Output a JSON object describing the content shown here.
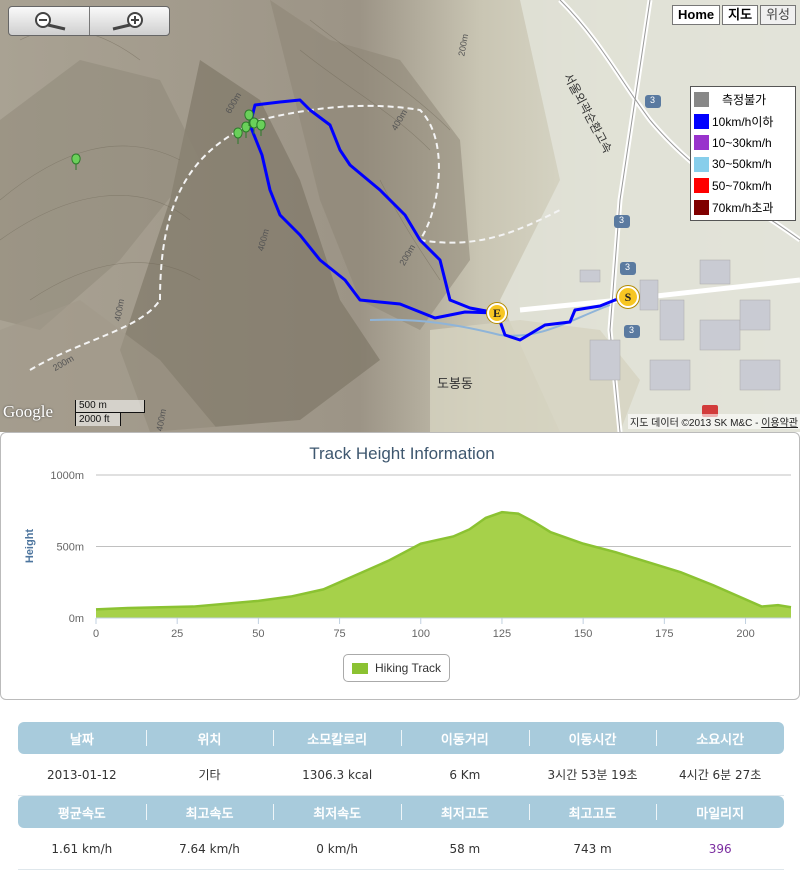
{
  "map": {
    "maptype_buttons": [
      "Home",
      "지도",
      "위성"
    ],
    "legend": [
      {
        "label": "측정불가",
        "color": "#888888"
      },
      {
        "label": "10km/h이하",
        "color": "#0000ff"
      },
      {
        "label": "10~30km/h",
        "color": "#9933cc"
      },
      {
        "label": "30~50km/h",
        "color": "#87ceeb"
      },
      {
        "label": "50~70km/h",
        "color": "#ff0000"
      },
      {
        "label": "70km/h초과",
        "color": "#800000"
      }
    ],
    "google": "Google",
    "scale_m": "500 m",
    "scale_ft": "2000 ft",
    "copyright": "지도 데이터 ©2013 SK M&C - ",
    "terms": "이용약관",
    "place_label": "도봉동",
    "road_label": "서울외곽순환고속",
    "route_numbers": [
      "3",
      "3",
      "3",
      "3"
    ],
    "contour_labels": [
      "600m",
      "400m",
      "400m",
      "200m",
      "200m",
      "400m",
      "200m",
      "400m"
    ],
    "marker_start": "S",
    "marker_end": "E",
    "track_color": "#0000ff"
  },
  "chart": {
    "title": "Track Height Information",
    "ylabel": "Height",
    "legend": "Hiking Track"
  },
  "chart_data": {
    "type": "area",
    "title": "Track Height Information",
    "xlabel": "",
    "ylabel": "Height",
    "xlim": [
      0,
      214
    ],
    "ylim": [
      0,
      1000
    ],
    "y_ticks": [
      "0m",
      "500m",
      "1000m"
    ],
    "x_ticks": [
      0,
      25,
      50,
      75,
      100,
      125,
      150,
      175,
      200
    ],
    "series": [
      {
        "name": "Hiking Track",
        "color": "#8bc232",
        "x": [
          0,
          10,
          20,
          30,
          40,
          50,
          60,
          70,
          80,
          90,
          100,
          110,
          115,
          120,
          125,
          130,
          135,
          140,
          150,
          160,
          170,
          180,
          190,
          200,
          205,
          210,
          214
        ],
        "y": [
          60,
          70,
          75,
          80,
          100,
          120,
          150,
          200,
          300,
          400,
          520,
          570,
          620,
          700,
          740,
          730,
          670,
          600,
          520,
          460,
          390,
          320,
          230,
          130,
          80,
          90,
          75
        ]
      }
    ]
  },
  "stats": {
    "header1": [
      "날짜",
      "위치",
      "소모칼로리",
      "이동거리",
      "이동시간",
      "소요시간"
    ],
    "values1": [
      "2013-01-12",
      "기타",
      "1306.3 kcal",
      "6 Km",
      "3시간 53분 19초",
      "4시간 6분 27초"
    ],
    "header2": [
      "평균속도",
      "최고속도",
      "최저속도",
      "최저고도",
      "최고고도",
      "마일리지"
    ],
    "values2": [
      "1.61 km/h",
      "7.64 km/h",
      "0 km/h",
      "58 m",
      "743 m",
      "396"
    ]
  }
}
